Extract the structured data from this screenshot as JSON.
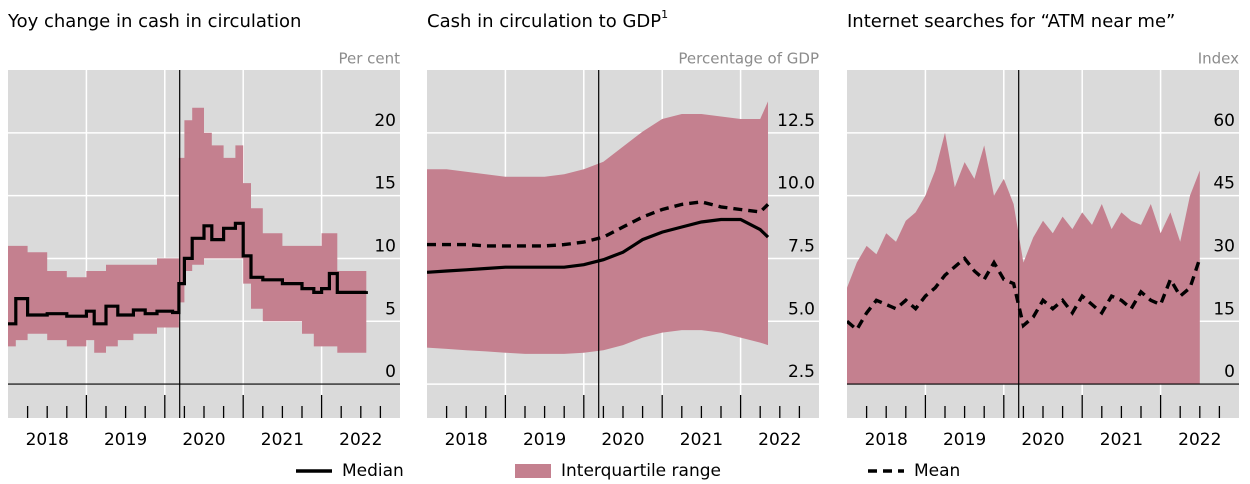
{
  "chart_data": [
    {
      "type": "line",
      "title": "Yoy change in cash in circulation",
      "unit_label": "Per cent",
      "xlim": [
        2018,
        2023
      ],
      "xticks": [
        2019,
        2020,
        2021,
        2022
      ],
      "xtick_labels": [
        {
          "value": 2018.5,
          "label": "2018"
        },
        {
          "value": 2019.5,
          "label": "2019"
        },
        {
          "value": 2020.5,
          "label": "2020"
        },
        {
          "value": 2021.5,
          "label": "2021"
        },
        {
          "value": 2022.5,
          "label": "2022"
        }
      ],
      "xminor_ticks": [
        2018.25,
        2018.5,
        2018.75,
        2019.25,
        2019.5,
        2019.75,
        2020.25,
        2020.5,
        2020.75,
        2021.25,
        2021.5,
        2021.75,
        2022.25,
        2022.5,
        2022.75
      ],
      "ylim": [
        -2.7,
        25
      ],
      "yticks": [
        0,
        5,
        10,
        15,
        20
      ],
      "grid": true,
      "vline": 2020.19,
      "x": [
        2018.0,
        2018.1,
        2018.25,
        2018.5,
        2018.75,
        2019.0,
        2019.1,
        2019.25,
        2019.4,
        2019.6,
        2019.75,
        2019.9,
        2020.1,
        2020.18,
        2020.25,
        2020.35,
        2020.5,
        2020.6,
        2020.75,
        2020.9,
        2021.0,
        2021.1,
        2021.25,
        2021.5,
        2021.75,
        2021.9,
        2022.0,
        2022.1,
        2022.2,
        2022.57
      ],
      "series": [
        {
          "name": "Median",
          "type": "line",
          "step": true,
          "color": "#000000",
          "values": [
            4.8,
            6.8,
            5.5,
            5.6,
            5.4,
            5.8,
            4.8,
            6.2,
            5.5,
            5.9,
            5.6,
            5.8,
            5.7,
            8.0,
            10.0,
            11.6,
            12.6,
            11.5,
            12.4,
            12.8,
            10.2,
            8.5,
            8.3,
            8.0,
            7.6,
            7.3,
            7.6,
            8.8,
            7.3,
            7.4
          ]
        },
        {
          "name": "Interquartile range",
          "type": "band",
          "step": true,
          "color": "#c4808f",
          "high": [
            11.0,
            11.0,
            10.5,
            9.0,
            8.5,
            9.0,
            9.0,
            9.5,
            9.5,
            9.5,
            9.5,
            10.0,
            10.0,
            18,
            21,
            22,
            20,
            19,
            18,
            19,
            16,
            14,
            12,
            11,
            11,
            11,
            12,
            12,
            9,
            9
          ],
          "low": [
            3.0,
            3.5,
            4.0,
            3.5,
            3.0,
            3.5,
            2.5,
            3.0,
            3.5,
            4.0,
            4.0,
            4.5,
            4.5,
            6.5,
            9.0,
            9.5,
            10,
            10,
            10,
            10,
            8,
            6,
            5,
            5,
            4,
            3,
            3,
            3,
            2.5,
            2.5
          ]
        }
      ]
    },
    {
      "type": "line",
      "title": "Cash in circulation to GDP",
      "title_note": "1",
      "unit_label": "Percentage of GDP",
      "xlim": [
        2018,
        2023
      ],
      "xticks": [
        2019,
        2020,
        2021,
        2022
      ],
      "xtick_labels": [
        {
          "value": 2018.5,
          "label": "2018"
        },
        {
          "value": 2019.5,
          "label": "2019"
        },
        {
          "value": 2020.5,
          "label": "2020"
        },
        {
          "value": 2021.5,
          "label": "2021"
        },
        {
          "value": 2022.5,
          "label": "2022"
        }
      ],
      "xminor_ticks": [
        2018.25,
        2018.5,
        2018.75,
        2019.25,
        2019.5,
        2019.75,
        2020.25,
        2020.5,
        2020.75,
        2021.25,
        2021.5,
        2021.75,
        2022.25,
        2022.5,
        2022.75
      ],
      "ylim": [
        1.15,
        15
      ],
      "yticks": [
        2.5,
        {
          "value": 5,
          "label": "5.0"
        },
        7.5,
        {
          "value": 10,
          "label": "10.0"
        },
        12.5
      ],
      "grid": true,
      "vline": 2020.19,
      "x": [
        2018.0,
        2018.25,
        2018.5,
        2018.75,
        2019.0,
        2019.25,
        2019.5,
        2019.75,
        2020.0,
        2020.25,
        2020.5,
        2020.75,
        2021.0,
        2021.25,
        2021.5,
        2021.75,
        2022.0,
        2022.25,
        2022.35
      ],
      "series": [
        {
          "name": "Median",
          "type": "line",
          "color": "#000000",
          "values": [
            6.95,
            7.0,
            7.05,
            7.1,
            7.15,
            7.15,
            7.15,
            7.15,
            7.25,
            7.45,
            7.75,
            8.25,
            8.55,
            8.75,
            8.95,
            9.05,
            9.05,
            8.65,
            8.35
          ]
        },
        {
          "name": "Interquartile range",
          "type": "band",
          "color": "#c4808f",
          "high": [
            11.05,
            11.05,
            10.95,
            10.85,
            10.75,
            10.75,
            10.75,
            10.85,
            11.05,
            11.35,
            11.95,
            12.55,
            13.05,
            13.25,
            13.25,
            13.15,
            13.05,
            13.05,
            13.75
          ],
          "low": [
            3.95,
            3.9,
            3.85,
            3.8,
            3.75,
            3.7,
            3.7,
            3.7,
            3.75,
            3.85,
            4.05,
            4.35,
            4.55,
            4.65,
            4.65,
            4.55,
            4.35,
            4.15,
            4.05
          ]
        },
        {
          "name": "Mean",
          "type": "line",
          "dash": true,
          "color": "#000000",
          "values": [
            8.05,
            8.05,
            8.05,
            8.0,
            8.0,
            8.0,
            8.0,
            8.05,
            8.15,
            8.35,
            8.75,
            9.15,
            9.45,
            9.65,
            9.75,
            9.55,
            9.45,
            9.35,
            9.65
          ]
        }
      ]
    },
    {
      "type": "line",
      "title": "Internet searches for “ATM near me”",
      "unit_label": "Index",
      "xlim": [
        2018,
        2023
      ],
      "xticks": [
        2019,
        2020,
        2021,
        2022
      ],
      "xtick_labels": [
        {
          "value": 2018.5,
          "label": "2018"
        },
        {
          "value": 2019.5,
          "label": "2019"
        },
        {
          "value": 2020.5,
          "label": "2020"
        },
        {
          "value": 2021.5,
          "label": "2021"
        },
        {
          "value": 2022.5,
          "label": "2022"
        }
      ],
      "xminor_ticks": [
        2018.25,
        2018.5,
        2018.75,
        2019.25,
        2019.5,
        2019.75,
        2020.25,
        2020.5,
        2020.75,
        2021.25,
        2021.5,
        2021.75,
        2022.25,
        2022.5,
        2022.75
      ],
      "ylim": [
        -8.1,
        75
      ],
      "yticks": [
        0,
        15,
        30,
        45,
        60
      ],
      "grid": true,
      "vline": 2020.19,
      "x": [
        2018.0,
        2018.125,
        2018.25,
        2018.375,
        2018.5,
        2018.625,
        2018.75,
        2018.875,
        2019.0,
        2019.125,
        2019.25,
        2019.375,
        2019.5,
        2019.625,
        2019.75,
        2019.875,
        2020.0,
        2020.125,
        2020.25,
        2020.375,
        2020.5,
        2020.625,
        2020.75,
        2020.875,
        2021.0,
        2021.125,
        2021.25,
        2021.375,
        2021.5,
        2021.625,
        2021.75,
        2021.875,
        2022.0,
        2022.125,
        2022.25,
        2022.375,
        2022.5
      ],
      "series": [
        {
          "name": "Interquartile range",
          "type": "area",
          "color": "#c4808f",
          "values": [
            23,
            29,
            33,
            31,
            36,
            34,
            39,
            41,
            45,
            51,
            60,
            47,
            53,
            49,
            57,
            45,
            49,
            43,
            29,
            35,
            39,
            36,
            40,
            37,
            41,
            38,
            43,
            37,
            41,
            39,
            38,
            43,
            36,
            41,
            34,
            45,
            51
          ]
        },
        {
          "name": "Mean",
          "type": "line",
          "dash": true,
          "color": "#000000",
          "values": [
            15,
            13,
            17,
            20,
            19,
            18,
            20,
            18,
            21,
            23,
            26,
            28,
            30,
            27,
            25,
            29,
            25,
            24,
            14,
            16,
            20,
            18,
            20,
            17,
            21,
            19,
            17,
            21,
            20,
            18,
            22,
            20,
            19,
            25,
            21,
            23,
            30
          ]
        }
      ]
    }
  ]
}
